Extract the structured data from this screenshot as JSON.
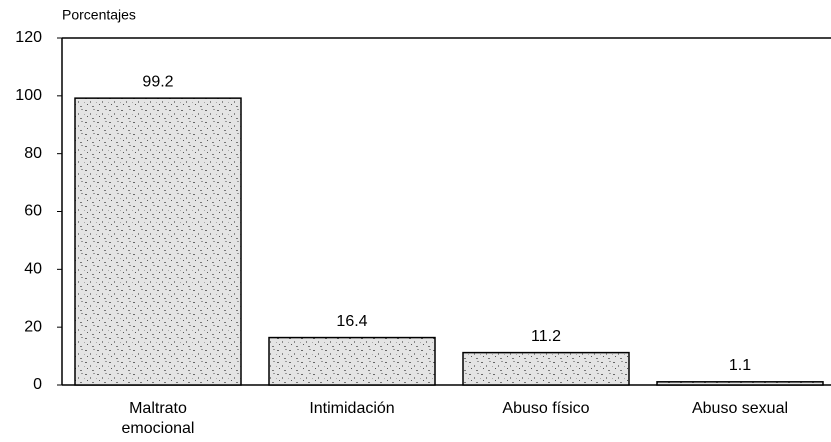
{
  "chart_data": {
    "type": "bar",
    "y_label": "Porcentajes",
    "categories": [
      "Maltrato emocional",
      "Intimidación",
      "Abuso físico",
      "Abuso sexual"
    ],
    "values": [
      99.2,
      16.4,
      11.2,
      1.1
    ],
    "color": "#bdbdbd",
    "ylim": [
      0,
      120
    ],
    "yticks": [
      0,
      20,
      40,
      60,
      80,
      100,
      120
    ],
    "grid": false
  }
}
